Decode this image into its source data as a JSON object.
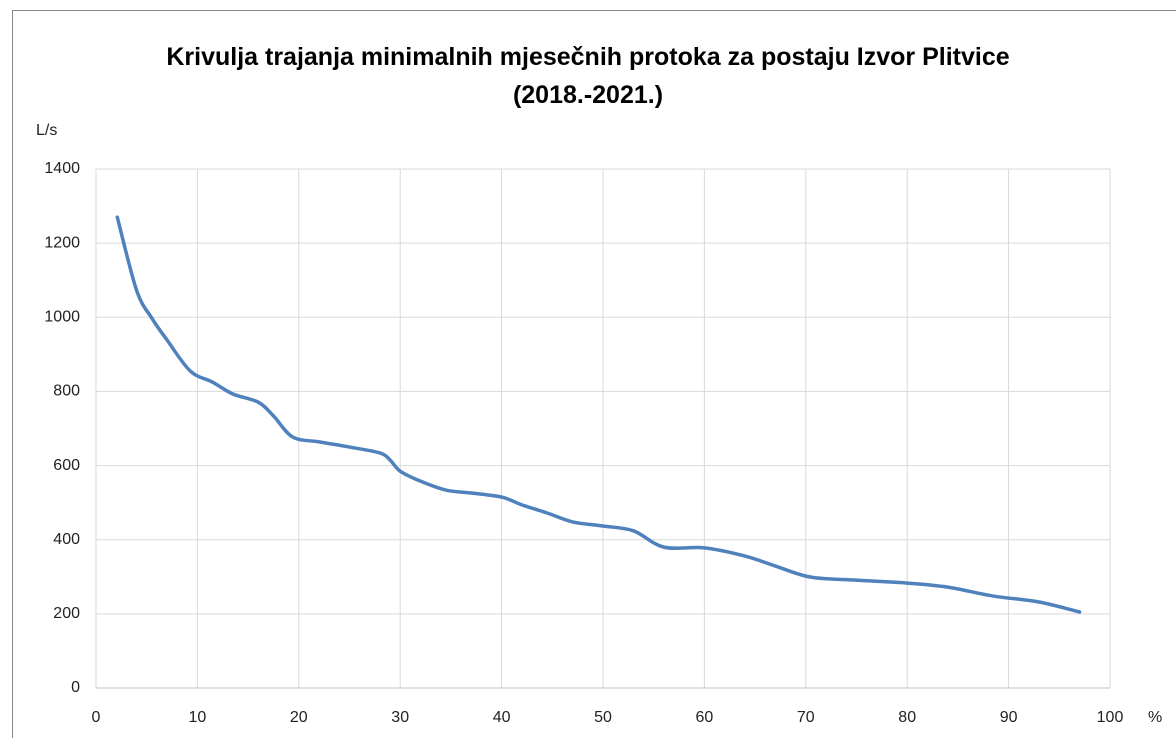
{
  "chart_data": {
    "type": "line",
    "title": "Krivulja trajanja minimalnih mjesečnih protoka za postaju Izvor Plitvice (2018.-2021.)",
    "y_label": "L/s",
    "x_label": "%",
    "x": [
      2.1,
      4,
      5.5,
      7,
      9.3,
      11.5,
      13.5,
      16,
      17.5,
      19.4,
      22,
      25,
      28,
      29,
      30,
      32,
      34.5,
      37,
      40,
      42,
      44.5,
      47,
      50,
      53,
      56,
      60,
      64,
      67,
      70.5,
      75,
      80,
      84,
      88.5,
      93,
      97
    ],
    "series": [
      {
        "name": "Izvor Plitvice",
        "color": "#4f81bd",
        "values": [
          1270,
          1073,
          998,
          939,
          855,
          825,
          793,
          771,
          734,
          677,
          664,
          650,
          634,
          615,
          585,
          558,
          534,
          526,
          515,
          494,
          472,
          448,
          437,
          424,
          380,
          378,
          356,
          329,
          299,
          291,
          283,
          272,
          248,
          232,
          205
        ]
      }
    ],
    "xlim": [
      0,
      100
    ],
    "xticks": [
      0,
      10,
      20,
      30,
      40,
      50,
      60,
      70,
      80,
      90,
      100
    ],
    "ylim": [
      0,
      1400
    ],
    "yticks": [
      0,
      200,
      400,
      600,
      800,
      1000,
      1200,
      1400
    ],
    "grid": true
  }
}
